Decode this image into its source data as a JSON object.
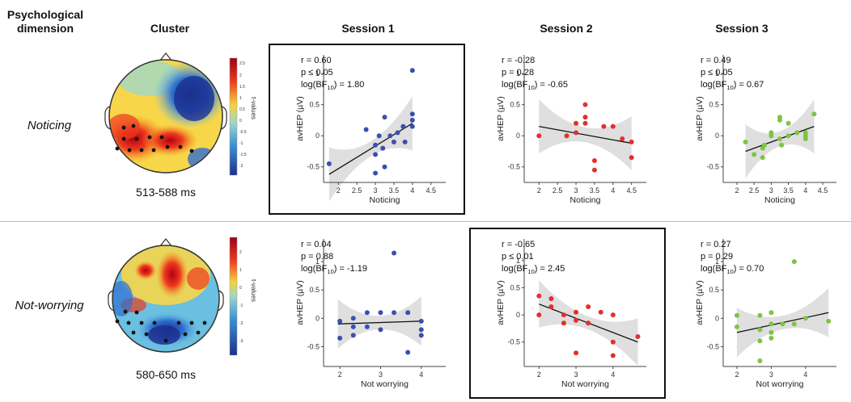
{
  "headers": {
    "psych_line1": "Psychological",
    "psych_line2": "dimension",
    "cluster": "Cluster",
    "session1": "Session 1",
    "session2": "Session 2",
    "session3": "Session 3"
  },
  "rows": [
    {
      "dimension": "Noticing",
      "time": "513-588 ms",
      "colorbar_label": "t-values",
      "colorbar_ticks": [
        "2.5",
        "2",
        "1.5",
        "1",
        "0.5",
        "0",
        "-0.5",
        "-1",
        "-1.5",
        "-2"
      ]
    },
    {
      "dimension": "Not-worrying",
      "time": "580-650 ms",
      "colorbar_label": "t-values",
      "colorbar_ticks": [
        "2",
        "1",
        "0",
        "-1",
        "-2",
        "-3"
      ]
    }
  ],
  "colors": {
    "session1": "#3a4fb0",
    "session2": "#e0312b",
    "session3": "#7cc542",
    "band": "#d9d9d9"
  },
  "chart_data": [
    {
      "type": "scatter",
      "row": "Noticing",
      "session": "Session 1",
      "highlight": true,
      "stats": [
        "r = 0.60",
        "p ≤ 0.05",
        "log(BF10) = 1.80"
      ],
      "xlabel": "Noticing",
      "ylabel": "avHEP (µV)",
      "xlim": [
        1.6,
        4.9
      ],
      "ylim": [
        -0.75,
        1.3
      ],
      "xticks": [
        "2",
        "2.5",
        "3",
        "3.5",
        "4",
        "4.5"
      ],
      "yticks": [
        "-0.5",
        "0",
        "0.5",
        "1"
      ],
      "fit": [
        [
          1.75,
          -0.62
        ],
        [
          4.0,
          0.2
        ]
      ],
      "points": [
        [
          1.75,
          -0.45
        ],
        [
          2.75,
          0.1
        ],
        [
          3.0,
          -0.15
        ],
        [
          3.0,
          -0.3
        ],
        [
          3.0,
          -0.6
        ],
        [
          3.1,
          0.0
        ],
        [
          3.2,
          -0.2
        ],
        [
          3.25,
          0.3
        ],
        [
          3.25,
          -0.5
        ],
        [
          3.4,
          0.0
        ],
        [
          3.5,
          -0.1
        ],
        [
          3.6,
          0.05
        ],
        [
          3.75,
          0.15
        ],
        [
          3.8,
          -0.1
        ],
        [
          4.0,
          0.35
        ],
        [
          4.0,
          0.15
        ],
        [
          4.0,
          0.25
        ],
        [
          4.0,
          1.05
        ]
      ]
    },
    {
      "type": "scatter",
      "row": "Noticing",
      "session": "Session 2",
      "highlight": false,
      "stats": [
        "r = -0.28",
        "p = 0.28",
        "log(BF10) = -0.65"
      ],
      "xlabel": "Noticing",
      "ylabel": "avHEP (µV)",
      "xlim": [
        1.6,
        4.9
      ],
      "ylim": [
        -0.75,
        1.3
      ],
      "xticks": [
        "2",
        "2.5",
        "3",
        "3.5",
        "4",
        "4.5"
      ],
      "yticks": [
        "-0.5",
        "0",
        "0.5",
        "1"
      ],
      "fit": [
        [
          2.0,
          0.15
        ],
        [
          4.5,
          -0.12
        ]
      ],
      "points": [
        [
          2.0,
          0.0
        ],
        [
          2.75,
          0.0
        ],
        [
          3.0,
          0.05
        ],
        [
          3.0,
          0.2
        ],
        [
          3.25,
          0.5
        ],
        [
          3.25,
          0.3
        ],
        [
          3.25,
          0.2
        ],
        [
          3.5,
          -0.4
        ],
        [
          3.5,
          -0.55
        ],
        [
          3.75,
          0.15
        ],
        [
          4.0,
          0.15
        ],
        [
          4.25,
          -0.05
        ],
        [
          4.5,
          -0.1
        ],
        [
          4.5,
          -0.35
        ]
      ]
    },
    {
      "type": "scatter",
      "row": "Noticing",
      "session": "Session 3",
      "highlight": false,
      "stats": [
        "r = 0.49",
        "p ≤ 0.05",
        "log(BF10) = 0.67"
      ],
      "xlabel": "Noticing",
      "ylabel": "avHEP (µV)",
      "xlim": [
        1.6,
        4.9
      ],
      "ylim": [
        -0.75,
        1.3
      ],
      "xticks": [
        "2",
        "2.5",
        "3",
        "3.5",
        "4",
        "4.5"
      ],
      "yticks": [
        "-0.5",
        "0",
        "0.5",
        "1"
      ],
      "fit": [
        [
          2.25,
          -0.25
        ],
        [
          4.25,
          0.15
        ]
      ],
      "points": [
        [
          2.25,
          -0.1
        ],
        [
          2.5,
          -0.3
        ],
        [
          2.75,
          -0.2
        ],
        [
          2.75,
          -0.35
        ],
        [
          2.8,
          -0.15
        ],
        [
          3.0,
          0.0
        ],
        [
          3.0,
          0.05
        ],
        [
          3.25,
          0.3
        ],
        [
          3.25,
          0.25
        ],
        [
          3.25,
          -0.05
        ],
        [
          3.3,
          -0.15
        ],
        [
          3.5,
          0.2
        ],
        [
          3.5,
          0.0
        ],
        [
          3.75,
          0.05
        ],
        [
          4.0,
          0.05
        ],
        [
          4.0,
          0.0
        ],
        [
          4.0,
          -0.05
        ],
        [
          4.25,
          0.35
        ]
      ]
    },
    {
      "type": "scatter",
      "row": "Not-worrying",
      "session": "Session 1",
      "highlight": false,
      "stats": [
        "r = 0.04",
        "p = 0.88",
        "log(BF10) = -1.19"
      ],
      "xlabel": "Not worrying",
      "ylabel": "avHEP (µV)",
      "xlim": [
        1.6,
        4.6
      ],
      "ylim": [
        -0.85,
        1.4
      ],
      "xticks": [
        "2",
        "3",
        "4"
      ],
      "yticks": [
        "-0.5",
        "0",
        "0.5",
        "1"
      ],
      "fit": [
        [
          1.95,
          -0.1
        ],
        [
          4.0,
          -0.05
        ]
      ],
      "points": [
        [
          2.0,
          -0.05
        ],
        [
          2.0,
          -0.35
        ],
        [
          2.33,
          -0.15
        ],
        [
          2.33,
          -0.3
        ],
        [
          2.33,
          0.0
        ],
        [
          2.67,
          0.1
        ],
        [
          2.67,
          -0.15
        ],
        [
          3.0,
          0.1
        ],
        [
          3.0,
          -0.2
        ],
        [
          3.33,
          0.1
        ],
        [
          3.33,
          1.15
        ],
        [
          3.67,
          0.1
        ],
        [
          3.67,
          -0.6
        ],
        [
          4.0,
          -0.2
        ],
        [
          4.0,
          -0.3
        ],
        [
          4.0,
          -0.05
        ]
      ]
    },
    {
      "type": "scatter",
      "row": "Not-worrying",
      "session": "Session 2",
      "highlight": true,
      "stats": [
        "r = -0.65",
        "p ≤ 0.01",
        "log(BF10) = 2.45"
      ],
      "xlabel": "Not worrying",
      "ylabel": "avHEP (µV)",
      "xlim": [
        1.6,
        4.9
      ],
      "ylim": [
        -0.95,
        1.4
      ],
      "xticks": [
        "2",
        "3",
        "4"
      ],
      "yticks": [
        "-0.5",
        "0",
        "0.5",
        "1"
      ],
      "fit": [
        [
          2.0,
          0.2
        ],
        [
          4.67,
          -0.5
        ]
      ],
      "points": [
        [
          2.0,
          0.35
        ],
        [
          2.0,
          0.0
        ],
        [
          2.33,
          0.3
        ],
        [
          2.33,
          0.15
        ],
        [
          2.67,
          0.0
        ],
        [
          2.67,
          -0.15
        ],
        [
          3.0,
          0.05
        ],
        [
          3.0,
          -0.1
        ],
        [
          3.0,
          -0.7
        ],
        [
          3.33,
          -0.15
        ],
        [
          3.33,
          0.15
        ],
        [
          3.67,
          0.05
        ],
        [
          4.0,
          0.0
        ],
        [
          4.0,
          -0.5
        ],
        [
          4.0,
          -0.75
        ],
        [
          4.67,
          -0.4
        ]
      ]
    },
    {
      "type": "scatter",
      "row": "Not-worrying",
      "session": "Session 3",
      "highlight": false,
      "stats": [
        "r = 0.27",
        "p = 0.29",
        "log(BF10) = 0.70"
      ],
      "xlabel": "Not worrying",
      "ylabel": "avHEP (µV)",
      "xlim": [
        1.6,
        4.9
      ],
      "ylim": [
        -0.85,
        1.4
      ],
      "xticks": [
        "2",
        "3",
        "4"
      ],
      "yticks": [
        "-0.5",
        "0",
        "0.5",
        "1"
      ],
      "fit": [
        [
          2.0,
          -0.25
        ],
        [
          4.67,
          0.1
        ]
      ],
      "points": [
        [
          2.0,
          0.05
        ],
        [
          2.0,
          -0.15
        ],
        [
          2.67,
          0.05
        ],
        [
          2.67,
          -0.2
        ],
        [
          2.67,
          -0.4
        ],
        [
          2.67,
          -0.75
        ],
        [
          3.0,
          0.1
        ],
        [
          3.0,
          -0.1
        ],
        [
          3.0,
          -0.25
        ],
        [
          3.0,
          -0.35
        ],
        [
          3.33,
          -0.1
        ],
        [
          3.67,
          1.0
        ],
        [
          3.67,
          -0.1
        ],
        [
          4.0,
          0.0
        ],
        [
          4.67,
          -0.05
        ]
      ]
    }
  ]
}
